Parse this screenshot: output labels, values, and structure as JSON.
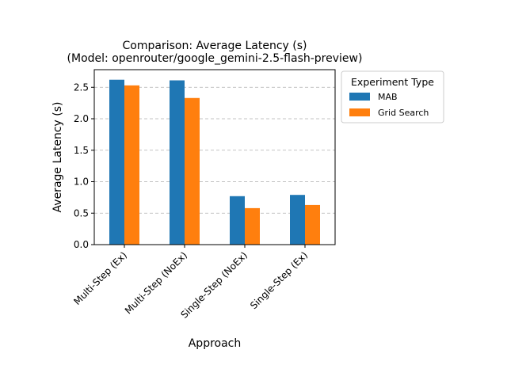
{
  "chart_data": {
    "type": "bar",
    "title_line1": "Comparison: Average Latency (s)",
    "title_line2": "(Model: openrouter/google_gemini-2.5-flash-preview)",
    "xlabel": "Approach",
    "ylabel": "Average Latency (s)",
    "categories": [
      "Multi-Step (Ex)",
      "Multi-Step (NoEx)",
      "Single-Step (NoEx)",
      "Single-Step (Ex)"
    ],
    "series": [
      {
        "name": "MAB",
        "values": [
          2.62,
          2.61,
          0.77,
          0.79
        ],
        "color": "#1f77b4"
      },
      {
        "name": "Grid Search",
        "values": [
          2.53,
          2.33,
          0.58,
          0.63
        ],
        "color": "#ff7f0e"
      }
    ],
    "ylim": [
      0,
      2.78
    ],
    "yticks": [
      0.0,
      0.5,
      1.0,
      1.5,
      2.0,
      2.5
    ],
    "ytick_labels": [
      "0.0",
      "0.5",
      "1.0",
      "1.5",
      "2.0",
      "2.5"
    ],
    "grid": "y-dashed",
    "legend": {
      "title": "Experiment Type",
      "placement": "outside-right-top"
    }
  }
}
